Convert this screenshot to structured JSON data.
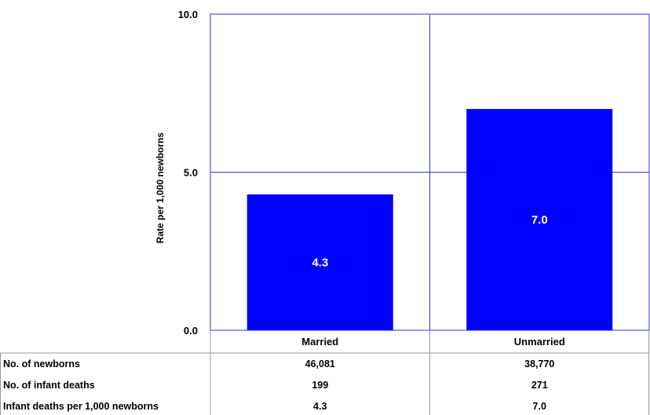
{
  "chart_data": {
    "type": "bar",
    "ylabel": "Rate per 1,000 newborns",
    "ylim": [
      0,
      10
    ],
    "yticks": [
      "0.0",
      "5.0",
      "10.0"
    ],
    "categories": [
      "Married",
      "Unmarried"
    ],
    "values": [
      4.3,
      7.0
    ],
    "value_labels": [
      "4.3",
      "7.0"
    ],
    "grid": true,
    "bar_color": "#0000ff",
    "gridline_color": "#3333cc",
    "table": {
      "rows": [
        {
          "label": "No. of newborns",
          "values": [
            "46,081",
            "38,770"
          ]
        },
        {
          "label": "No. of infant deaths",
          "values": [
            "199",
            "271"
          ]
        },
        {
          "label": "Infant deaths per  1,000 newborns",
          "values": [
            "4.3",
            "7.0"
          ]
        }
      ]
    }
  }
}
